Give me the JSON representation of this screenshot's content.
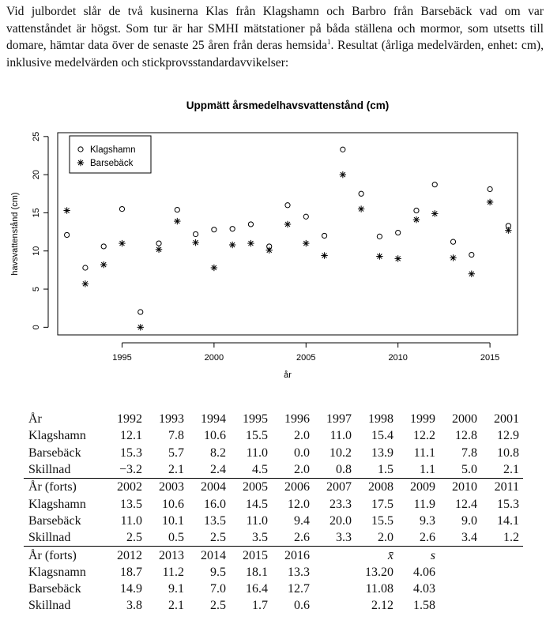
{
  "intro": {
    "text": "Vid julbordet slår de två kusinerna Klas från Klagshamn och Barbro från Barsebäck vad om var vattenståndet är högst. Som tur är har SMHI mätstationer på båda ställena och mormor, som utsetts till domare, hämtar data över de senaste 25 åren från deras hemsida",
    "footnote_mark": "1",
    "text_after": ". Resultat (årliga medelvärden, enhet: cm), inklusive medelvärden och stickprovsstandardavvikelser:"
  },
  "chart_data": {
    "type": "scatter",
    "title": "Uppmätt årsmedelhavsvattenstånd (cm)",
    "xlabel": "år",
    "ylabel": "havsvattenstånd (cm)",
    "xlim": [
      1991.5,
      2016.5
    ],
    "ylim": [
      -1,
      25.5
    ],
    "xticks": [
      1995,
      2000,
      2005,
      2010,
      2015
    ],
    "yticks": [
      0,
      5,
      10,
      15,
      20,
      25
    ],
    "legend_position": "top-left",
    "x": [
      1992,
      1993,
      1994,
      1995,
      1996,
      1997,
      1998,
      1999,
      2000,
      2001,
      2002,
      2003,
      2004,
      2005,
      2006,
      2007,
      2008,
      2009,
      2010,
      2011,
      2012,
      2013,
      2014,
      2015,
      2016
    ],
    "series": [
      {
        "name": "Klagshamn",
        "marker": "circle",
        "values": [
          12.1,
          7.8,
          10.6,
          15.5,
          2.0,
          11.0,
          15.4,
          12.2,
          12.8,
          12.9,
          13.5,
          10.6,
          16.0,
          14.5,
          12.0,
          23.3,
          17.5,
          11.9,
          12.4,
          15.3,
          18.7,
          11.2,
          9.5,
          18.1,
          13.3
        ]
      },
      {
        "name": "Barsebäck",
        "marker": "asterisk",
        "values": [
          15.3,
          5.7,
          8.2,
          11.0,
          0.0,
          10.2,
          13.9,
          11.1,
          7.8,
          10.8,
          11.0,
          10.1,
          13.5,
          11.0,
          9.4,
          20.0,
          15.5,
          9.3,
          9.0,
          14.1,
          14.9,
          9.1,
          7.0,
          16.4,
          12.7
        ]
      }
    ]
  },
  "tables": [
    {
      "header": [
        "År",
        "1992",
        "1993",
        "1994",
        "1995",
        "1996",
        "1997",
        "1998",
        "1999",
        "2000",
        "2001"
      ],
      "rows": [
        [
          "Klagshamn",
          "12.1",
          "7.8",
          "10.6",
          "15.5",
          "2.0",
          "11.0",
          "15.4",
          "12.2",
          "12.8",
          "12.9"
        ],
        [
          "Barsebäck",
          "15.3",
          "5.7",
          "8.2",
          "11.0",
          "0.0",
          "10.2",
          "13.9",
          "11.1",
          "7.8",
          "10.8"
        ],
        [
          "Skillnad",
          "−3.2",
          "2.1",
          "2.4",
          "4.5",
          "2.0",
          "0.8",
          "1.5",
          "1.1",
          "5.0",
          "2.1"
        ]
      ]
    },
    {
      "header": [
        "År (forts)",
        "2002",
        "2003",
        "2004",
        "2005",
        "2006",
        "2007",
        "2008",
        "2009",
        "2010",
        "2011"
      ],
      "rows": [
        [
          "Klagshamn",
          "13.5",
          "10.6",
          "16.0",
          "14.5",
          "12.0",
          "23.3",
          "17.5",
          "11.9",
          "12.4",
          "15.3"
        ],
        [
          "Barsebäck",
          "11.0",
          "10.1",
          "13.5",
          "11.0",
          "9.4",
          "20.0",
          "15.5",
          "9.3",
          "9.0",
          "14.1"
        ],
        [
          "Skillnad",
          "2.5",
          "0.5",
          "2.5",
          "3.5",
          "2.6",
          "3.3",
          "2.0",
          "2.6",
          "3.4",
          "1.2"
        ]
      ]
    },
    {
      "header": [
        "År (forts)",
        "2012",
        "2013",
        "2014",
        "2015",
        "2016",
        "",
        "x̄",
        "s",
        "",
        ""
      ],
      "rows": [
        [
          "Klagsnamn",
          "18.7",
          "11.2",
          "9.5",
          "18.1",
          "13.3",
          "",
          "13.20",
          "4.06",
          "",
          ""
        ],
        [
          "Barsebäck",
          "14.9",
          "9.1",
          "7.0",
          "16.4",
          "12.7",
          "",
          "11.08",
          "4.03",
          "",
          ""
        ],
        [
          "Skillnad",
          "3.8",
          "2.1",
          "2.5",
          "1.7",
          "0.6",
          "",
          "2.12",
          "1.58",
          "",
          ""
        ]
      ]
    }
  ]
}
